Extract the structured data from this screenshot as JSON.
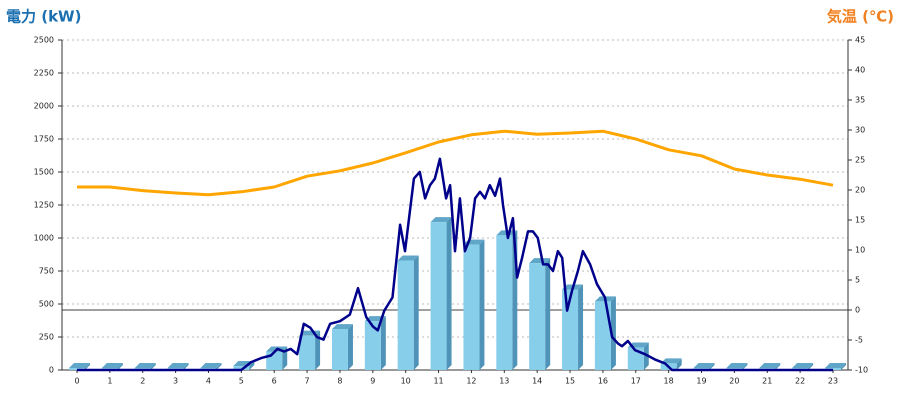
{
  "chart_data": {
    "type": "bar",
    "title": "電力 (kW)",
    "y2_title": "気温 (℃)",
    "categories": [
      "0",
      "1",
      "2",
      "3",
      "4",
      "5",
      "6",
      "7",
      "8",
      "9",
      "10",
      "11",
      "12",
      "13",
      "14",
      "15",
      "16",
      "17",
      "18",
      "19",
      "20",
      "21",
      "22",
      "23"
    ],
    "ylim": [
      0,
      2500
    ],
    "yticks": [
      0,
      250,
      500,
      750,
      1000,
      1250,
      1500,
      1750,
      2000,
      2250,
      2500
    ],
    "y2lim": [
      -10,
      45
    ],
    "y2ticks": [
      -10,
      -5,
      0,
      5,
      10,
      15,
      20,
      25,
      30,
      35,
      40,
      45
    ],
    "grid": true,
    "series": [
      {
        "type": "bar",
        "color": "#87ceeb",
        "axis": "y",
        "values": [
          15,
          15,
          15,
          15,
          15,
          30,
          140,
          260,
          310,
          370,
          830,
          1120,
          950,
          1020,
          810,
          610,
          520,
          170,
          50,
          15,
          15,
          15,
          15,
          15
        ]
      },
      {
        "type": "line",
        "color": "#ffa500",
        "axis": "y2",
        "values": [
          20.5,
          20.5,
          19.9,
          19.5,
          19.2,
          19.7,
          20.5,
          22.3,
          23.2,
          24.5,
          26.2,
          28.0,
          29.2,
          29.8,
          29.3,
          29.5,
          29.8,
          28.5,
          26.7,
          25.7,
          23.5,
          22.5,
          21.8,
          20.8
        ]
      },
      {
        "type": "line",
        "color": "#00008b",
        "axis": "y",
        "x": [
          0,
          5,
          5.3,
          5.6,
          5.9,
          6.1,
          6.3,
          6.5,
          6.7,
          6.9,
          7.1,
          7.3,
          7.5,
          7.7,
          8.0,
          8.3,
          8.55,
          8.8,
          9.0,
          9.15,
          9.35,
          9.6,
          9.83,
          9.98,
          10.25,
          10.43,
          10.59,
          10.74,
          10.89,
          11.04,
          11.23,
          11.35,
          11.5,
          11.65,
          11.8,
          11.96,
          12.11,
          12.26,
          12.41,
          12.56,
          12.72,
          12.87,
          12.96,
          13.11,
          13.26,
          13.39,
          13.54,
          13.72,
          13.87,
          14.02,
          14.18,
          14.33,
          14.48,
          14.63,
          14.76,
          14.91,
          15.06,
          15.24,
          15.39,
          15.61,
          15.82,
          16.06,
          16.28,
          16.46,
          16.58,
          16.76,
          16.98,
          17.28,
          17.58,
          17.89,
          18.1,
          23
        ],
        "values": [
          0,
          0,
          60,
          90,
          110,
          160,
          140,
          160,
          120,
          350,
          320,
          250,
          230,
          350,
          370,
          420,
          620,
          400,
          330,
          300,
          450,
          550,
          1100,
          900,
          1450,
          1500,
          1300,
          1400,
          1450,
          1600,
          1300,
          1400,
          900,
          1300,
          900,
          1000,
          1300,
          1350,
          1300,
          1400,
          1320,
          1450,
          1250,
          1000,
          1150,
          700,
          850,
          1050,
          1050,
          1000,
          800,
          800,
          750,
          900,
          850,
          450,
          600,
          750,
          900,
          800,
          650,
          550,
          250,
          200,
          180,
          220,
          150,
          120,
          80,
          50,
          0,
          0
        ]
      }
    ]
  }
}
